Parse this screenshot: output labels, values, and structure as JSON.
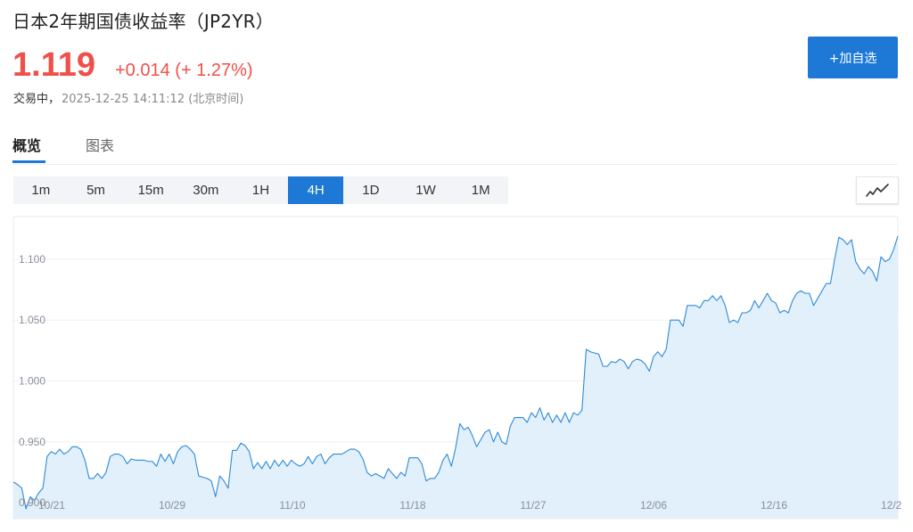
{
  "header": {
    "title": "日本2年期国债收益率（JP2YR）",
    "price": "1.119",
    "change": "+0.014 (+ 1.27%)",
    "status_label": "交易中，",
    "status_time": "2025-12-25 14:11:12 (北京时间)",
    "add_watch_label": "+加自选"
  },
  "tabs": [
    {
      "label": "概览",
      "active": true
    },
    {
      "label": "图表",
      "active": false
    }
  ],
  "intervals": [
    {
      "label": "1m"
    },
    {
      "label": "5m"
    },
    {
      "label": "15m"
    },
    {
      "label": "30m"
    },
    {
      "label": "1H"
    },
    {
      "label": "4H",
      "active": true
    },
    {
      "label": "1D"
    },
    {
      "label": "1W"
    },
    {
      "label": "1M"
    }
  ],
  "chart_type_icon": "line-chart-icon",
  "colors": {
    "accent": "#1d78d6",
    "price_up": "#f0504a",
    "line": "#2e8ad8",
    "area": "#deeefb"
  },
  "chart_data": {
    "type": "area",
    "title": "",
    "xlabel": "",
    "ylabel": "",
    "ylim": [
      0.887,
      1.135
    ],
    "yticks": [
      "1.100",
      "1.050",
      "1.000",
      "0.950",
      "0.900"
    ],
    "xticks": [
      "10/21",
      "10/29",
      "11/10",
      "11/18",
      "11/27",
      "12/06",
      "12/16",
      "12/2"
    ],
    "grid": true,
    "series": [
      {
        "values": [
          0.917,
          0.915,
          0.912,
          0.895,
          0.905,
          0.902,
          0.908,
          0.912,
          0.938,
          0.942,
          0.94,
          0.944,
          0.94,
          0.942,
          0.946,
          0.946,
          0.944,
          0.935,
          0.92,
          0.92,
          0.924,
          0.92,
          0.925,
          0.938,
          0.94,
          0.94,
          0.938,
          0.932,
          0.936,
          0.935,
          0.935,
          0.935,
          0.934,
          0.934,
          0.93,
          0.94,
          0.934,
          0.94,
          0.932,
          0.942,
          0.946,
          0.947,
          0.944,
          0.94,
          0.922,
          0.921,
          0.92,
          0.918,
          0.905,
          0.922,
          0.918,
          0.912,
          0.943,
          0.943,
          0.949,
          0.947,
          0.942,
          0.928,
          0.933,
          0.928,
          0.934,
          0.928,
          0.935,
          0.93,
          0.935,
          0.93,
          0.935,
          0.932,
          0.93,
          0.932,
          0.938,
          0.932,
          0.938,
          0.94,
          0.932,
          0.937,
          0.94,
          0.94,
          0.94,
          0.942,
          0.944,
          0.944,
          0.942,
          0.936,
          0.925,
          0.922,
          0.924,
          0.922,
          0.92,
          0.928,
          0.924,
          0.92,
          0.925,
          0.922,
          0.937,
          0.937,
          0.937,
          0.932,
          0.918,
          0.92,
          0.92,
          0.925,
          0.935,
          0.94,
          0.93,
          0.945,
          0.965,
          0.96,
          0.962,
          0.955,
          0.946,
          0.952,
          0.958,
          0.96,
          0.95,
          0.958,
          0.95,
          0.948,
          0.963,
          0.97,
          0.97,
          0.97,
          0.966,
          0.974,
          0.97,
          0.978,
          0.968,
          0.974,
          0.966,
          0.972,
          0.966,
          0.974,
          0.966,
          0.974,
          0.972,
          0.976,
          1.026,
          1.024,
          1.023,
          1.022,
          1.012,
          1.012,
          1.016,
          1.015,
          1.018,
          1.016,
          1.01,
          1.016,
          1.018,
          1.017,
          1.014,
          1.008,
          1.02,
          1.024,
          1.02,
          1.026,
          1.05,
          1.05,
          1.05,
          1.045,
          1.062,
          1.062,
          1.062,
          1.06,
          1.066,
          1.066,
          1.07,
          1.066,
          1.07,
          1.062,
          1.048,
          1.05,
          1.048,
          1.056,
          1.056,
          1.058,
          1.066,
          1.06,
          1.066,
          1.072,
          1.066,
          1.064,
          1.056,
          1.058,
          1.056,
          1.066,
          1.072,
          1.074,
          1.072,
          1.072,
          1.062,
          1.068,
          1.074,
          1.08,
          1.08,
          1.1,
          1.118,
          1.116,
          1.112,
          1.116,
          1.098,
          1.092,
          1.088,
          1.094,
          1.09,
          1.082,
          1.102,
          1.098,
          1.1,
          1.108,
          1.119
        ]
      }
    ]
  }
}
